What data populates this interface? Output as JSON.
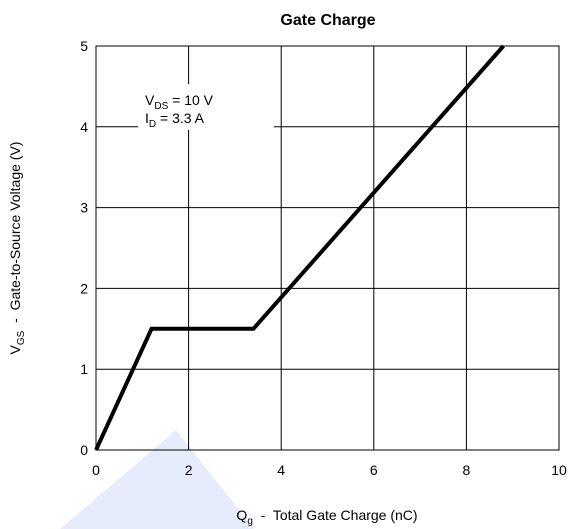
{
  "chart_data": {
    "type": "line",
    "title": "Gate Charge",
    "xlabel": {
      "main": "Q",
      "sub": "g",
      "rest": "  -  Total Gate Charge (nC)"
    },
    "ylabel": {
      "main": "V",
      "sub": "GS",
      "rest": "  -  Gate-to-Source Voltage (V)"
    },
    "xlim": [
      0,
      10
    ],
    "ylim": [
      0,
      5
    ],
    "xticks": [
      "0",
      "2",
      "4",
      "6",
      "8",
      "10"
    ],
    "yticks": [
      "0",
      "1",
      "2",
      "3",
      "4",
      "5"
    ],
    "x_grid_values": [
      0,
      2,
      4,
      6,
      8,
      10
    ],
    "y_grid_values": [
      0,
      1,
      2,
      3,
      4,
      5
    ],
    "grid": true,
    "series": [
      {
        "x": [
          0,
          1.2,
          3.4,
          8.8
        ],
        "y": [
          0,
          1.5,
          1.5,
          5.0
        ]
      }
    ],
    "annotation": {
      "line1": {
        "main": "V",
        "sub": "DS",
        "rest": " = 10 V"
      },
      "line2": {
        "main": "I",
        "sub": "D",
        "rest": " = 3.3 A"
      }
    }
  }
}
